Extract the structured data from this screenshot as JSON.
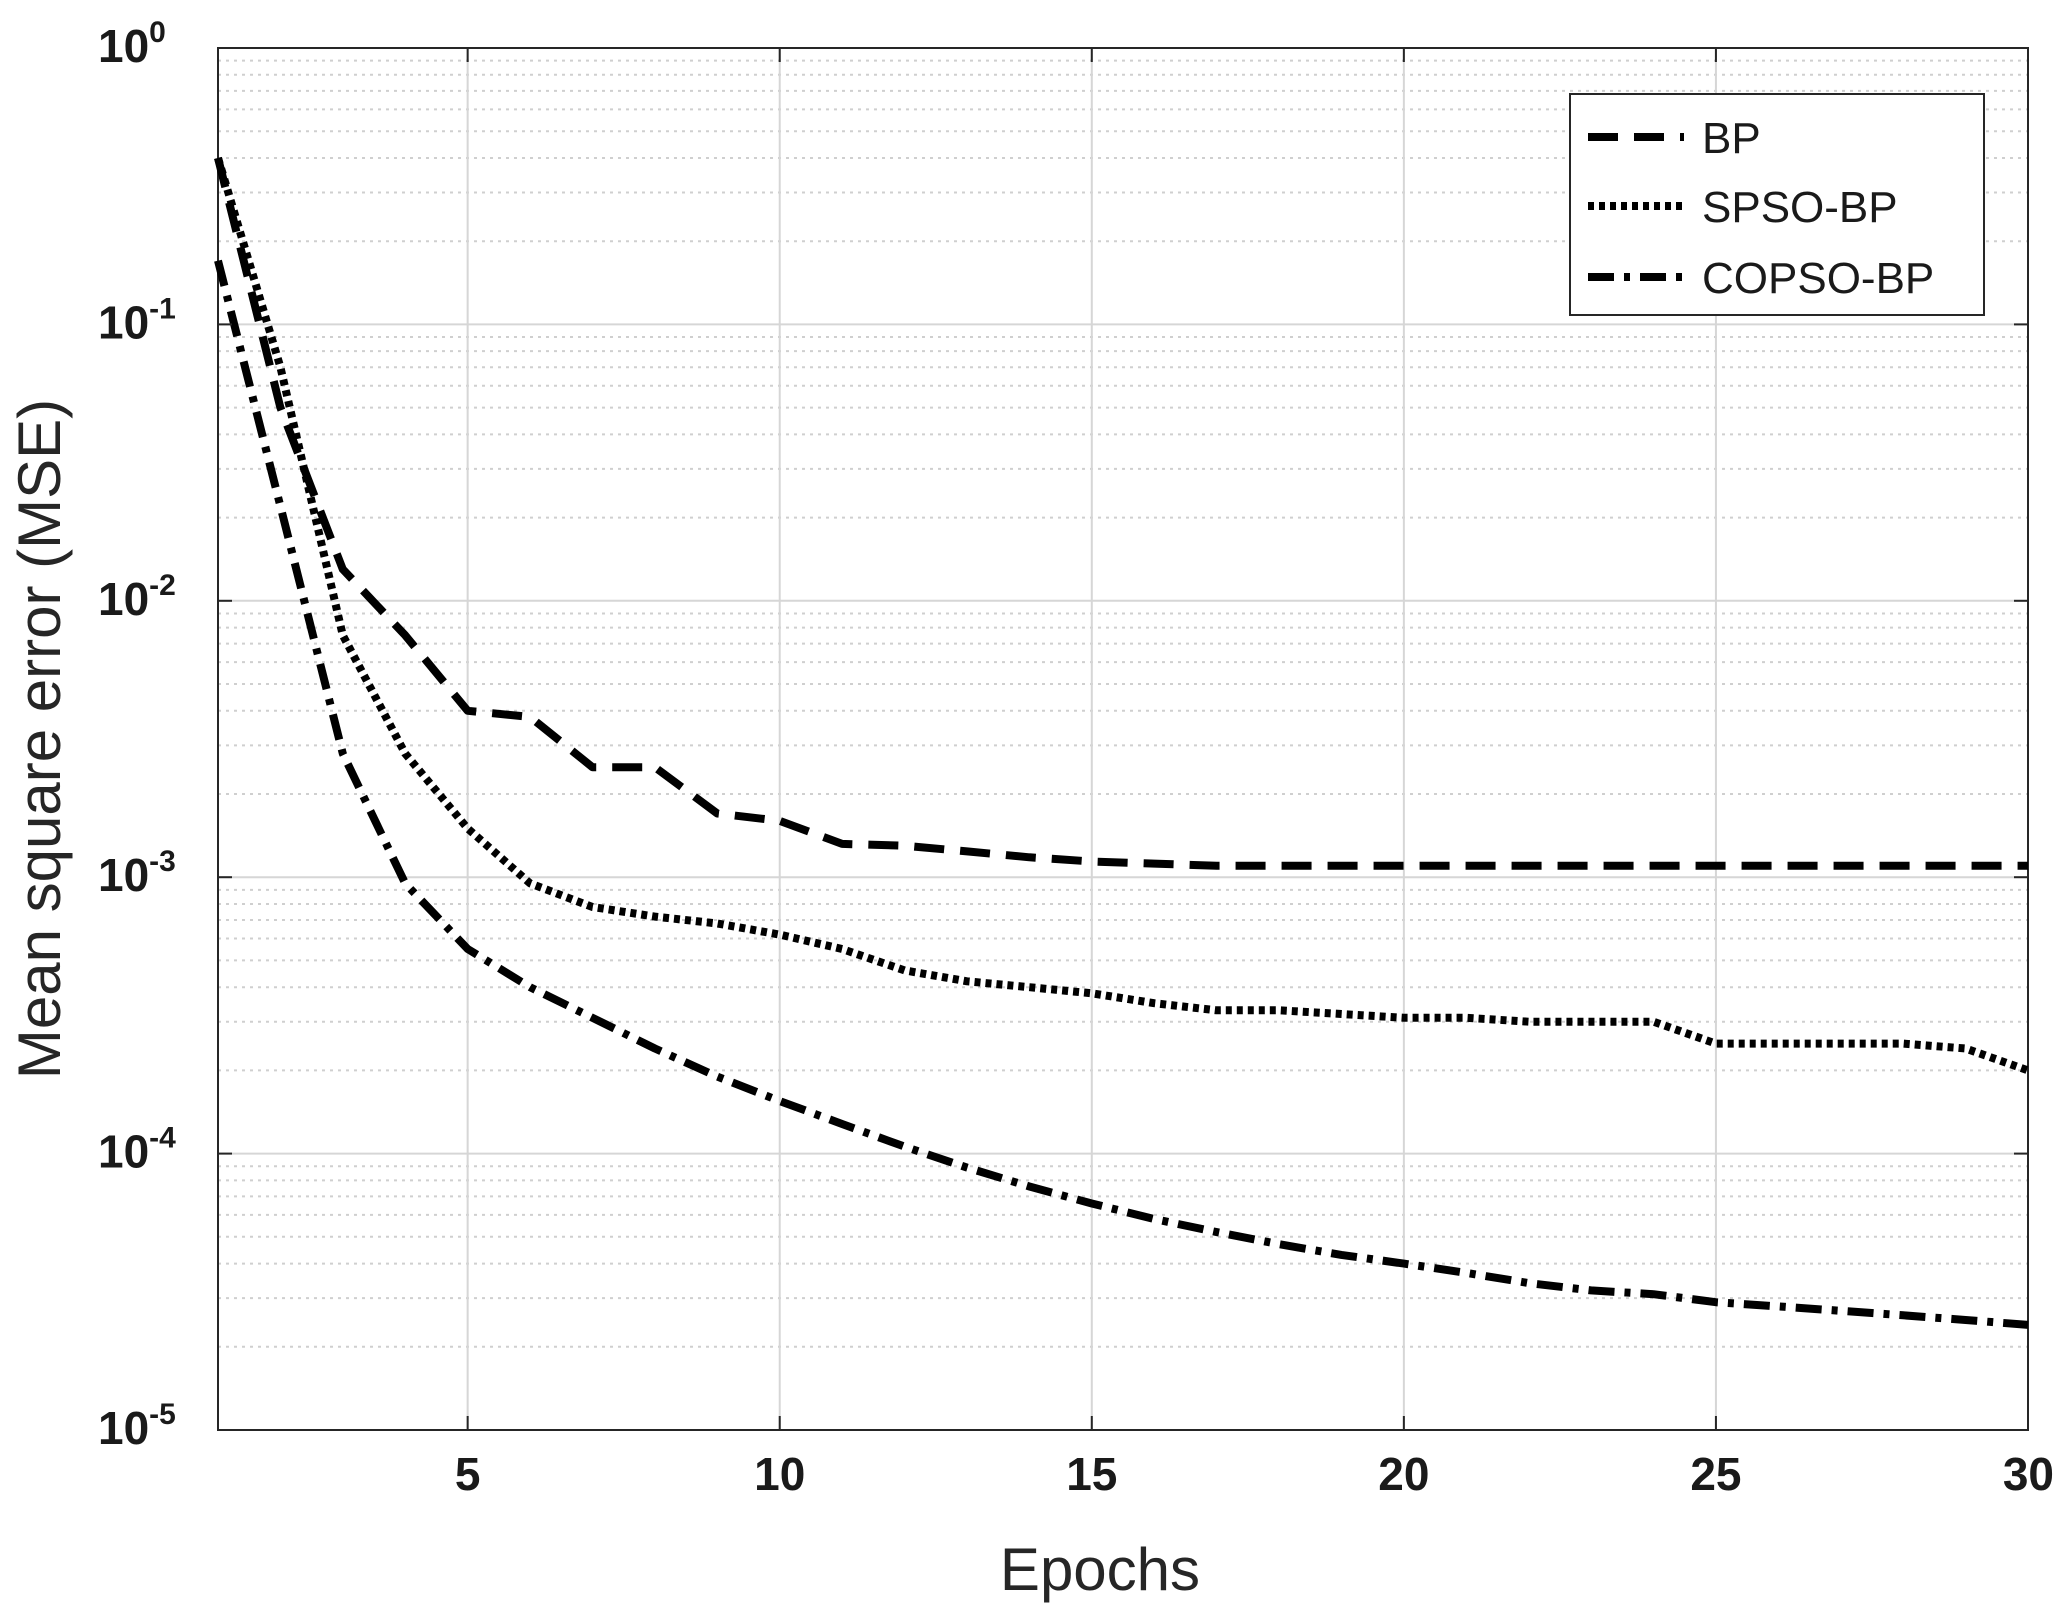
{
  "chart_data": {
    "type": "line",
    "title": "",
    "xlabel": "Epochs",
    "ylabel": "Mean square error (MSE)",
    "xscale": "linear",
    "yscale": "log",
    "xlim": [
      1,
      30
    ],
    "ylim": [
      1e-05,
      1
    ],
    "xticks": [
      5,
      10,
      15,
      20,
      25,
      30
    ],
    "yticks": [
      {
        "value": 1,
        "base": "10",
        "exp": "0"
      },
      {
        "value": 0.1,
        "base": "10",
        "exp": "-1"
      },
      {
        "value": 0.01,
        "base": "10",
        "exp": "-2"
      },
      {
        "value": 0.001,
        "base": "10",
        "exp": "-3"
      },
      {
        "value": 0.0001,
        "base": "10",
        "exp": "-4"
      },
      {
        "value": 1e-05,
        "base": "10",
        "exp": "-5"
      }
    ],
    "grid": true,
    "legend_position": "top-right",
    "x": [
      1,
      2,
      3,
      4,
      5,
      6,
      7,
      8,
      9,
      10,
      11,
      12,
      13,
      14,
      15,
      16,
      17,
      18,
      19,
      20,
      21,
      22,
      23,
      24,
      25,
      26,
      27,
      28,
      29,
      30
    ],
    "series": [
      {
        "name": "BP",
        "style": "dashed",
        "values": [
          0.4,
          0.05,
          0.013,
          0.0075,
          0.004,
          0.0038,
          0.0025,
          0.0025,
          0.0017,
          0.0016,
          0.00132,
          0.0013,
          0.00124,
          0.00118,
          0.00114,
          0.00112,
          0.0011,
          0.0011,
          0.0011,
          0.0011,
          0.0011,
          0.0011,
          0.0011,
          0.0011,
          0.0011,
          0.0011,
          0.0011,
          0.0011,
          0.0011,
          0.0011
        ]
      },
      {
        "name": "SPSO-BP",
        "style": "dotted",
        "values": [
          0.4,
          0.07,
          0.0075,
          0.0028,
          0.0015,
          0.00095,
          0.00078,
          0.00072,
          0.00068,
          0.00062,
          0.00055,
          0.00046,
          0.00042,
          0.0004,
          0.00038,
          0.00035,
          0.00033,
          0.00033,
          0.00032,
          0.00031,
          0.00031,
          0.0003,
          0.0003,
          0.0003,
          0.00025,
          0.00025,
          0.00025,
          0.00025,
          0.00024,
          0.0002
        ]
      },
      {
        "name": "COPSO-BP",
        "style": "dash-dot",
        "values": [
          0.17,
          0.022,
          0.0028,
          0.00095,
          0.00055,
          0.0004,
          0.00031,
          0.00024,
          0.00019,
          0.000155,
          0.000128,
          0.000106,
          8.9e-05,
          7.6e-05,
          6.6e-05,
          5.8e-05,
          5.2e-05,
          4.7e-05,
          4.3e-05,
          4e-05,
          3.7e-05,
          3.4e-05,
          3.2e-05,
          3.1e-05,
          2.9e-05,
          2.8e-05,
          2.7e-05,
          2.6e-05,
          2.5e-05,
          2.4e-05
        ]
      }
    ]
  }
}
